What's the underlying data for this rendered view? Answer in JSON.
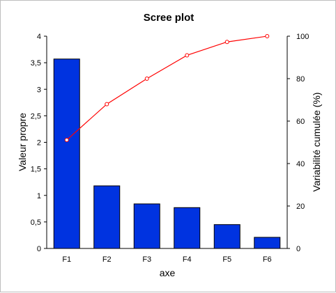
{
  "chart_data": {
    "type": "bar",
    "title": "Scree plot",
    "xlabel": "axe",
    "ylabel": "Valeur propre",
    "y2label": "Variabilité cumulée (%)",
    "categories": [
      "F1",
      "F2",
      "F3",
      "F4",
      "F5",
      "F6"
    ],
    "ylim": [
      0,
      4
    ],
    "y2lim": [
      0,
      100
    ],
    "yticks": [
      "0",
      "0,5",
      "1",
      "1,5",
      "2",
      "2,5",
      "3",
      "3,5",
      "4"
    ],
    "y2ticks": [
      "0",
      "20",
      "40",
      "60",
      "80",
      "100"
    ],
    "grid": false,
    "series": [
      {
        "type": "bar",
        "axis": "left",
        "color": "#0033e0",
        "values": [
          3.57,
          1.18,
          0.84,
          0.77,
          0.45,
          0.21
        ]
      },
      {
        "type": "line",
        "axis": "right",
        "color": "#ff0000",
        "values": [
          51.1,
          68.0,
          80.0,
          91.0,
          97.3,
          100.0
        ]
      }
    ]
  }
}
